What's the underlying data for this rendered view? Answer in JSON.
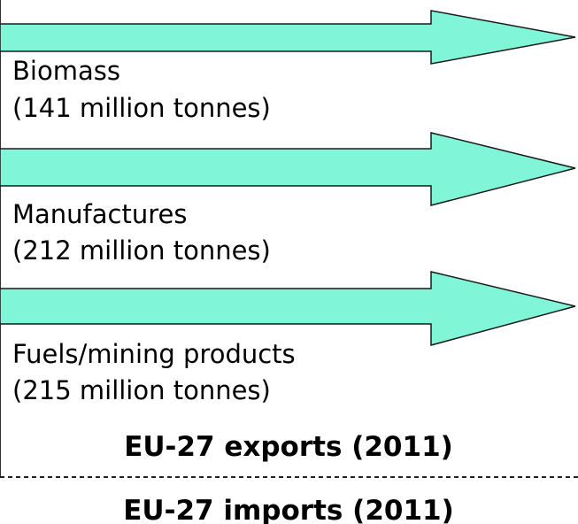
{
  "flows": [
    {
      "label": "Biomass",
      "amount": "(141 million tonnes)"
    },
    {
      "label": "Manufactures",
      "amount": "(212 million tonnes)"
    },
    {
      "label": "Fuels/mining products",
      "amount": "(215 million tonnes)"
    }
  ],
  "export_title": "EU-27 exports (2011)",
  "import_title": "EU-27 imports (2011)"
}
